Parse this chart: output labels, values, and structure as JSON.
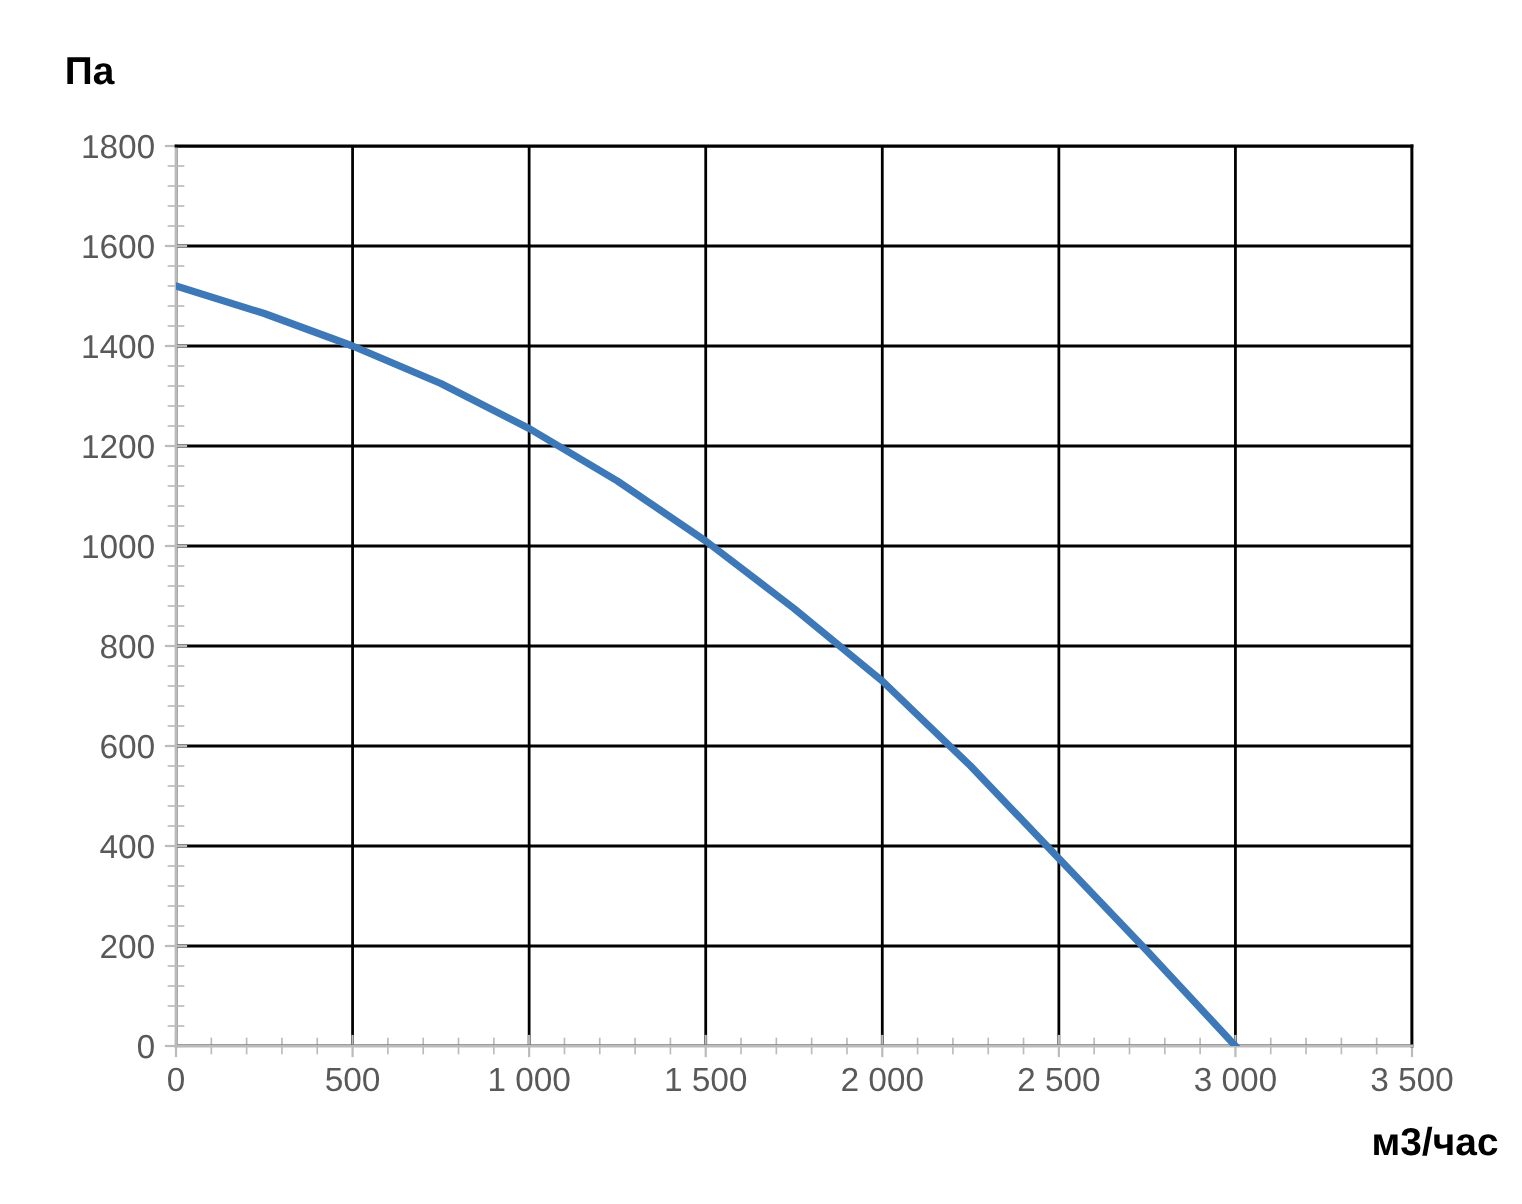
{
  "chart_data": {
    "type": "line",
    "xlabel": "м3/час",
    "ylabel": "Па",
    "x": [
      0,
      250,
      500,
      750,
      1000,
      1250,
      1500,
      1750,
      2000,
      2250,
      2500,
      2750,
      3000
    ],
    "series": [
      {
        "color": "#3d78b8",
        "values": [
          1520,
          1465,
          1400,
          1325,
          1235,
          1130,
          1010,
          875,
          730,
          560,
          375,
          190,
          0
        ]
      }
    ],
    "xlim": [
      0,
      3500
    ],
    "ylim": [
      0,
      1800
    ],
    "xticks": [
      0,
      500,
      {
        "value": 1000,
        "label": "1 000"
      },
      {
        "value": 1500,
        "label": "1 500"
      },
      {
        "value": 2000,
        "label": "2 000"
      },
      {
        "value": 2500,
        "label": "2 500"
      },
      {
        "value": 3000,
        "label": "3 000"
      },
      {
        "value": 3500,
        "label": "3 500"
      }
    ],
    "yticks": [
      0,
      200,
      400,
      600,
      800,
      1000,
      1200,
      1400,
      1600,
      1800
    ],
    "grid": true,
    "marker": "none",
    "line_style": "solid",
    "legend": false
  }
}
